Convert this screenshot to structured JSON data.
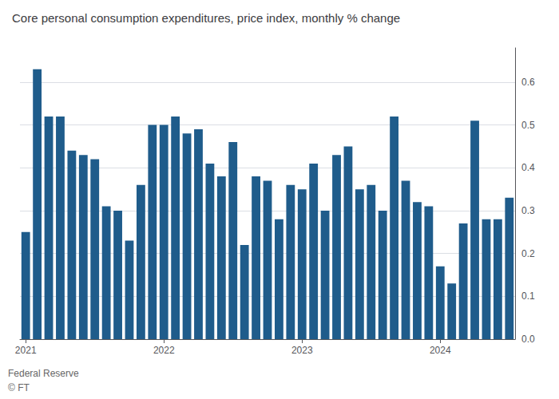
{
  "chart_data": {
    "type": "bar",
    "title": "Core personal consumption expenditures, price index, monthly % change",
    "annotations": [
      "Federal Reserve",
      "© FT"
    ],
    "categories": [
      "2021",
      null,
      null,
      null,
      null,
      null,
      null,
      null,
      null,
      null,
      null,
      null,
      "2022",
      null,
      null,
      null,
      null,
      null,
      null,
      null,
      null,
      null,
      null,
      null,
      "2023",
      null,
      null,
      null,
      null,
      null,
      null,
      null,
      null,
      null,
      null,
      null,
      "2024",
      null,
      null,
      null,
      null,
      null,
      null
    ],
    "values": [
      0.25,
      0.63,
      0.52,
      0.52,
      0.44,
      0.43,
      0.42,
      0.31,
      0.3,
      0.23,
      0.36,
      0.5,
      0.5,
      0.52,
      0.48,
      0.49,
      0.41,
      0.38,
      0.46,
      0.22,
      0.38,
      0.37,
      0.28,
      0.36,
      0.35,
      0.41,
      0.3,
      0.43,
      0.45,
      0.35,
      0.36,
      0.3,
      0.52,
      0.37,
      0.32,
      0.31,
      0.17,
      0.13,
      0.27,
      0.51,
      0.28,
      0.28,
      0.33
    ],
    "color": "#1f5c8b",
    "ylim": [
      0,
      0.68
    ],
    "yticks": [
      {
        "value": 0,
        "label": "0.0"
      },
      0.1,
      0.2,
      0.3,
      0.4,
      0.5,
      0.6
    ],
    "grid": true
  }
}
